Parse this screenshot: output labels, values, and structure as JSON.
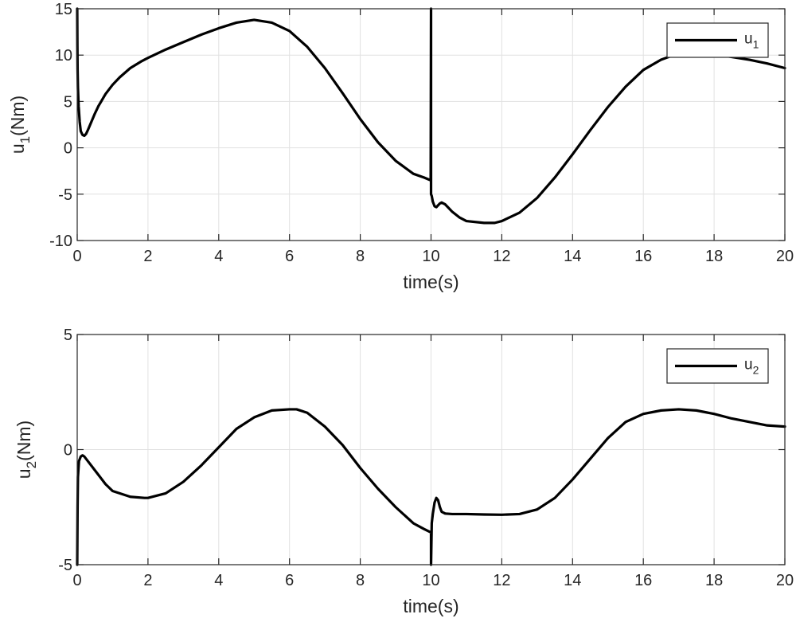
{
  "chart_data": [
    {
      "type": "line",
      "title": "",
      "xlabel": "time(s)",
      "ylabel": "u",
      "ylabel_sub": "1",
      "ylabel_unit": "(Nm)",
      "xlim": [
        0,
        20
      ],
      "ylim": [
        -10,
        15
      ],
      "xticks": [
        "0",
        "2",
        "4",
        "6",
        "8",
        "10",
        "12",
        "14",
        "16",
        "18",
        "20"
      ],
      "yticks": [
        "-10",
        "-5",
        "0",
        "5",
        "10",
        "15"
      ],
      "grid": true,
      "legend_position": "top-right",
      "colors": {
        "series": "#000000",
        "grid": "#e1e1e1",
        "axis": "#262626"
      },
      "series": [
        {
          "legend_base": "u",
          "legend_sub": "1",
          "x": [
            0,
            0.005,
            0.01,
            0.02,
            0.04,
            0.07,
            0.1,
            0.15,
            0.2,
            0.25,
            0.3,
            0.4,
            0.5,
            0.6,
            0.8,
            1.0,
            1.2,
            1.5,
            1.8,
            2.0,
            2.5,
            3.0,
            3.5,
            4.0,
            4.5,
            5.0,
            5.5,
            6.0,
            6.5,
            7.0,
            7.5,
            8.0,
            8.5,
            9.0,
            9.5,
            9.8,
            9.99,
            10.0,
            10.0,
            10.02,
            10.05,
            10.1,
            10.15,
            10.2,
            10.25,
            10.3,
            10.35,
            10.4,
            10.5,
            10.6,
            10.8,
            11.0,
            11.5,
            11.8,
            12.0,
            12.5,
            13.0,
            13.5,
            14.0,
            14.5,
            15.0,
            15.5,
            16.0,
            16.5,
            17.0,
            17.5,
            18.0,
            18.5,
            19.0,
            19.5,
            20.0
          ],
          "y": [
            15,
            11,
            8.5,
            6.5,
            4.5,
            2.8,
            1.8,
            1.4,
            1.3,
            1.5,
            1.9,
            2.8,
            3.7,
            4.5,
            5.8,
            6.8,
            7.6,
            8.6,
            9.3,
            9.7,
            10.6,
            11.4,
            12.2,
            12.9,
            13.5,
            13.8,
            13.5,
            12.6,
            10.9,
            8.6,
            5.9,
            3.1,
            0.6,
            -1.4,
            -2.8,
            -3.2,
            -3.5,
            15,
            -5,
            -5.2,
            -5.8,
            -6.3,
            -6.4,
            -6.2,
            -6.0,
            -5.9,
            -6.0,
            -6.1,
            -6.5,
            -6.9,
            -7.5,
            -7.9,
            -8.1,
            -8.1,
            -7.9,
            -7.0,
            -5.4,
            -3.2,
            -0.7,
            1.9,
            4.4,
            6.6,
            8.4,
            9.5,
            10.2,
            10.3,
            10.1,
            9.8,
            9.5,
            9.1,
            8.6
          ]
        }
      ]
    },
    {
      "type": "line",
      "title": "",
      "xlabel": "time(s)",
      "ylabel": "u",
      "ylabel_sub": "2",
      "ylabel_unit": "(Nm)",
      "xlim": [
        0,
        20
      ],
      "ylim": [
        -5,
        5
      ],
      "xticks": [
        "0",
        "2",
        "4",
        "6",
        "8",
        "10",
        "12",
        "14",
        "16",
        "18",
        "20"
      ],
      "yticks": [
        "-5",
        "0",
        "5"
      ],
      "grid": true,
      "legend_position": "top-right",
      "colors": {
        "series": "#000000",
        "grid": "#e1e1e1",
        "axis": "#262626"
      },
      "series": [
        {
          "legend_base": "u",
          "legend_sub": "2",
          "x": [
            0,
            0.01,
            0.02,
            0.05,
            0.1,
            0.15,
            0.2,
            0.3,
            0.5,
            0.8,
            1.0,
            1.5,
            1.9,
            2.0,
            2.5,
            3.0,
            3.5,
            4.0,
            4.5,
            5.0,
            5.5,
            6.0,
            6.2,
            6.5,
            7.0,
            7.5,
            8.0,
            8.5,
            9.0,
            9.5,
            9.8,
            10.0,
            10.0,
            10.02,
            10.05,
            10.1,
            10.15,
            10.2,
            10.25,
            10.3,
            10.4,
            10.6,
            11.0,
            11.5,
            12.0,
            12.5,
            13.0,
            13.5,
            14.0,
            14.5,
            15.0,
            15.5,
            16.0,
            16.5,
            17.0,
            17.5,
            18.0,
            18.5,
            19.0,
            19.5,
            20.0
          ],
          "y": [
            -5,
            -2.5,
            -1.2,
            -0.5,
            -0.3,
            -0.25,
            -0.3,
            -0.5,
            -0.9,
            -1.5,
            -1.8,
            -2.05,
            -2.1,
            -2.1,
            -1.9,
            -1.4,
            -0.7,
            0.1,
            0.9,
            1.4,
            1.7,
            1.75,
            1.75,
            1.6,
            1.0,
            0.2,
            -0.8,
            -1.7,
            -2.5,
            -3.2,
            -3.45,
            -3.6,
            -5,
            -3.2,
            -2.8,
            -2.3,
            -2.1,
            -2.2,
            -2.5,
            -2.7,
            -2.78,
            -2.8,
            -2.8,
            -2.82,
            -2.83,
            -2.8,
            -2.6,
            -2.1,
            -1.3,
            -0.4,
            0.5,
            1.2,
            1.55,
            1.7,
            1.75,
            1.7,
            1.55,
            1.35,
            1.2,
            1.05,
            1.0
          ]
        }
      ]
    }
  ]
}
